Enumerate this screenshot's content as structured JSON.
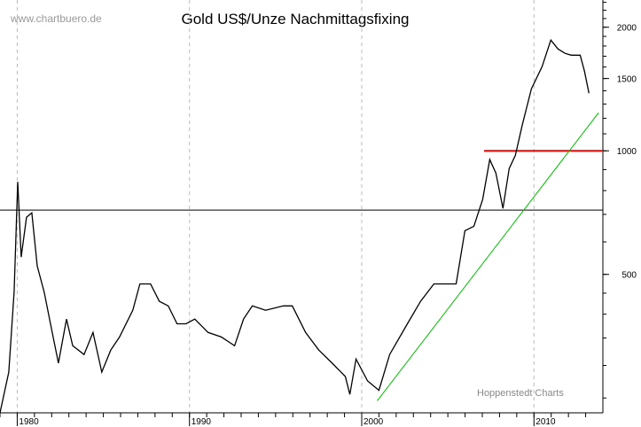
{
  "chart_data": {
    "type": "line",
    "title": "Gold US$/Unze Nachmittagsfixing",
    "watermark": "www.chartbuero.de",
    "source": "Hoppenstedt Charts",
    "y_scale": "log",
    "ylim": [
      230,
      2330
    ],
    "xlim": [
      1979.0,
      2014.0
    ],
    "y_ticks": [
      500,
      1000,
      1500,
      2000
    ],
    "x_ticks": [
      1980,
      1990,
      2000,
      2010
    ],
    "grid": "vertical dashed at decades",
    "series": [
      {
        "color": "#000000",
        "x": [
          1979.0,
          1979.51,
          1979.82,
          1980.03,
          1980.23,
          1980.54,
          1980.85,
          1981.16,
          1981.57,
          1981.98,
          1982.39,
          1982.86,
          1983.22,
          1983.88,
          1984.4,
          1984.91,
          1985.43,
          1985.94,
          1986.71,
          1987.12,
          1987.74,
          1988.25,
          1988.77,
          1989.28,
          1989.8,
          1990.31,
          1991.08,
          1991.85,
          1992.62,
          1993.14,
          1993.65,
          1994.42,
          1995.45,
          1995.97,
          1996.74,
          1997.51,
          1998.28,
          1999.05,
          1999.31,
          1999.67,
          2000.34,
          2001.0,
          2001.62,
          2002.65,
          2003.42,
          2004.19,
          2004.96,
          2005.48,
          2005.99,
          2006.51,
          2007.02,
          2007.43,
          2007.79,
          2008.2,
          2008.56,
          2008.92,
          2009.33,
          2009.85,
          2010.47,
          2010.98,
          2011.39,
          2011.8,
          2012.16,
          2012.68,
          2012.93,
          2013.19
        ],
        "y": [
          230,
          289,
          452,
          840,
          551,
          689,
          706,
          524,
          452,
          370,
          304,
          389,
          335,
          319,
          361,
          289,
          327,
          352,
          409,
          474,
          474,
          430,
          419,
          379,
          379,
          389,
          361,
          352,
          335,
          389,
          419,
          409,
          419,
          419,
          361,
          327,
          304,
          282,
          255,
          311,
          275,
          261,
          319,
          379,
          430,
          474,
          474,
          474,
          639,
          655,
          761,
          952,
          883,
          724,
          905,
          975,
          1161,
          1416,
          1603,
          1861,
          1771,
          1728,
          1710,
          1710,
          1564,
          1381
        ]
      }
    ],
    "lines": [
      {
        "type": "horizontal",
        "value": 717,
        "color": "#000000"
      },
      {
        "type": "horizontal",
        "value": 1000,
        "from": 2007.1,
        "color": "#ff0000"
      },
      {
        "type": "trend",
        "from": [
          2000.9,
          246
        ],
        "to": [
          2013.75,
          1238
        ],
        "color": "#00c000"
      }
    ]
  }
}
